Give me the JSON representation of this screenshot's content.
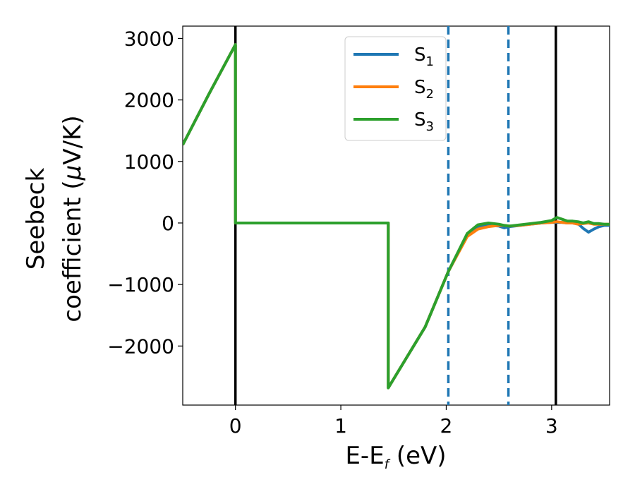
{
  "chart_data": {
    "type": "line",
    "title": "",
    "xlabel": "E-E",
    "xlabel_sub": "f",
    "xlabel_unit": " (eV)",
    "ylabel_line1": "Seebeck",
    "ylabel_line2": "coefficient  (",
    "ylabel_mu": "μ",
    "ylabel_unit": "V/K)",
    "xlim": [
      -0.5,
      3.55
    ],
    "ylim": [
      -2960,
      3200
    ],
    "x_ticks": [
      0,
      1,
      2,
      3
    ],
    "x_tick_labels": [
      "0",
      "1",
      "2",
      "3"
    ],
    "y_ticks": [
      -2000,
      -1000,
      0,
      1000,
      2000,
      3000
    ],
    "y_tick_labels": [
      "−2000",
      "−1000",
      "0",
      "1000",
      "2000",
      "3000"
    ],
    "grid": false,
    "legend_position": "top-center",
    "vertical_lines": [
      {
        "x": 0.0,
        "style": "solid",
        "color": "#000000"
      },
      {
        "x": 3.04,
        "style": "solid",
        "color": "#000000"
      },
      {
        "x": 2.02,
        "style": "dashed",
        "color": "#1f77b4"
      },
      {
        "x": 2.59,
        "style": "dashed",
        "color": "#1f77b4"
      }
    ],
    "series": [
      {
        "name": "S",
        "name_sub": "1",
        "color": "#1f77b4",
        "x": [
          -0.5,
          -0.25,
          0.0,
          0.0,
          0.5,
          1.0,
          1.45,
          1.45,
          1.8,
          2.02,
          2.2,
          2.3,
          2.4,
          2.5,
          2.55,
          2.6,
          2.7,
          2.8,
          2.9,
          3.0,
          3.05,
          3.1,
          3.15,
          3.2,
          3.25,
          3.3,
          3.35,
          3.4,
          3.45,
          3.5,
          3.55
        ],
        "values": [
          1270,
          2100,
          2900,
          0,
          0,
          0,
          0,
          -2680,
          -1690,
          -790,
          -200,
          -70,
          -40,
          -50,
          -80,
          -60,
          -40,
          -20,
          0,
          10,
          10,
          10,
          0,
          0,
          -10,
          -90,
          -150,
          -100,
          -60,
          -40,
          -40
        ]
      },
      {
        "name": "S",
        "name_sub": "2",
        "color": "#ff7f0e",
        "x": [
          -0.5,
          -0.25,
          0.0,
          0.0,
          0.5,
          1.0,
          1.45,
          1.45,
          1.8,
          2.02,
          2.2,
          2.3,
          2.4,
          2.5,
          2.55,
          2.6,
          2.7,
          2.8,
          2.9,
          3.0,
          3.05,
          3.1,
          3.15,
          3.2,
          3.25,
          3.3,
          3.35,
          3.4,
          3.45,
          3.5,
          3.55
        ],
        "values": [
          1270,
          2100,
          2900,
          0,
          0,
          0,
          0,
          -2680,
          -1690,
          -790,
          -220,
          -100,
          -60,
          -40,
          -40,
          -50,
          -40,
          -20,
          0,
          10,
          20,
          10,
          0,
          0,
          -20,
          -10,
          0,
          -20,
          -20,
          -20,
          -20
        ]
      },
      {
        "name": "S",
        "name_sub": "3",
        "color": "#2ca02c",
        "x": [
          -0.5,
          -0.25,
          0.0,
          0.0,
          0.5,
          1.0,
          1.45,
          1.45,
          1.8,
          2.02,
          2.2,
          2.3,
          2.4,
          2.5,
          2.55,
          2.6,
          2.7,
          2.8,
          2.9,
          3.0,
          3.05,
          3.1,
          3.15,
          3.2,
          3.25,
          3.3,
          3.35,
          3.4,
          3.45,
          3.5,
          3.55
        ],
        "values": [
          1270,
          2100,
          2900,
          0,
          0,
          0,
          0,
          -2680,
          -1690,
          -790,
          -170,
          -30,
          0,
          -20,
          -40,
          -50,
          -30,
          -10,
          10,
          40,
          90,
          60,
          30,
          30,
          20,
          0,
          20,
          -10,
          -10,
          -20,
          -20
        ]
      }
    ]
  }
}
